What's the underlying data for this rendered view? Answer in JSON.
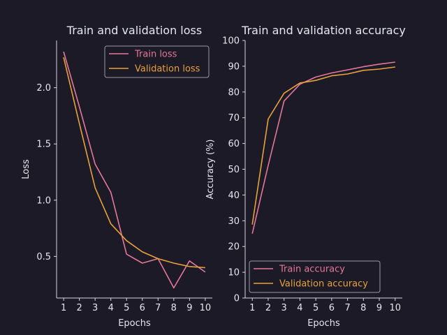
{
  "theme": {
    "background": "#1b1a26",
    "text": "#e6e6ee",
    "axis": "#d8d8e0",
    "train_color": "#e5779a",
    "val_color": "#e8a23c"
  },
  "chart_data": [
    {
      "type": "line",
      "title": "Train and validation loss",
      "xlabel": "Epochs",
      "ylabel": "Loss",
      "x": [
        1,
        2,
        3,
        4,
        5,
        6,
        7,
        8,
        9,
        10
      ],
      "xticks": [
        "1",
        "2",
        "3",
        "4",
        "5",
        "6",
        "7",
        "8",
        "9",
        "10"
      ],
      "yticks": [
        "0.5",
        "1.0",
        "1.5",
        "2.0"
      ],
      "ytick_values": [
        0.5,
        1.0,
        1.5,
        2.0
      ],
      "ylim": [
        0.13,
        2.42
      ],
      "legend_loc": "top-right",
      "series": [
        {
          "name": "Train loss",
          "values": [
            2.32,
            1.83,
            1.32,
            1.07,
            0.52,
            0.44,
            0.48,
            0.22,
            0.46,
            0.36
          ]
        },
        {
          "name": "Validation loss",
          "values": [
            2.27,
            1.68,
            1.11,
            0.79,
            0.64,
            0.54,
            0.48,
            0.44,
            0.41,
            0.4
          ]
        }
      ]
    },
    {
      "type": "line",
      "title": "Train and validation accuracy",
      "xlabel": "Epochs",
      "ylabel": "Accuracy (%)",
      "x": [
        1,
        2,
        3,
        4,
        5,
        6,
        7,
        8,
        9,
        10
      ],
      "xticks": [
        "1",
        "2",
        "3",
        "4",
        "5",
        "6",
        "7",
        "8",
        "9",
        "10"
      ],
      "yticks": [
        "0",
        "10",
        "20",
        "30",
        "40",
        "50",
        "60",
        "70",
        "80",
        "90",
        "100"
      ],
      "ytick_values": [
        0,
        10,
        20,
        30,
        40,
        50,
        60,
        70,
        80,
        90,
        100
      ],
      "ylim": [
        0,
        100
      ],
      "legend_loc": "bottom-left",
      "series": [
        {
          "name": "Train accuracy",
          "values": [
            25.0,
            51.5,
            76.5,
            83.0,
            85.8,
            87.4,
            88.6,
            89.8,
            90.8,
            91.6
          ]
        },
        {
          "name": "Validation accuracy",
          "values": [
            28.5,
            69.5,
            79.5,
            83.5,
            84.5,
            86.3,
            87.0,
            88.4,
            88.9,
            89.7
          ]
        }
      ]
    }
  ]
}
